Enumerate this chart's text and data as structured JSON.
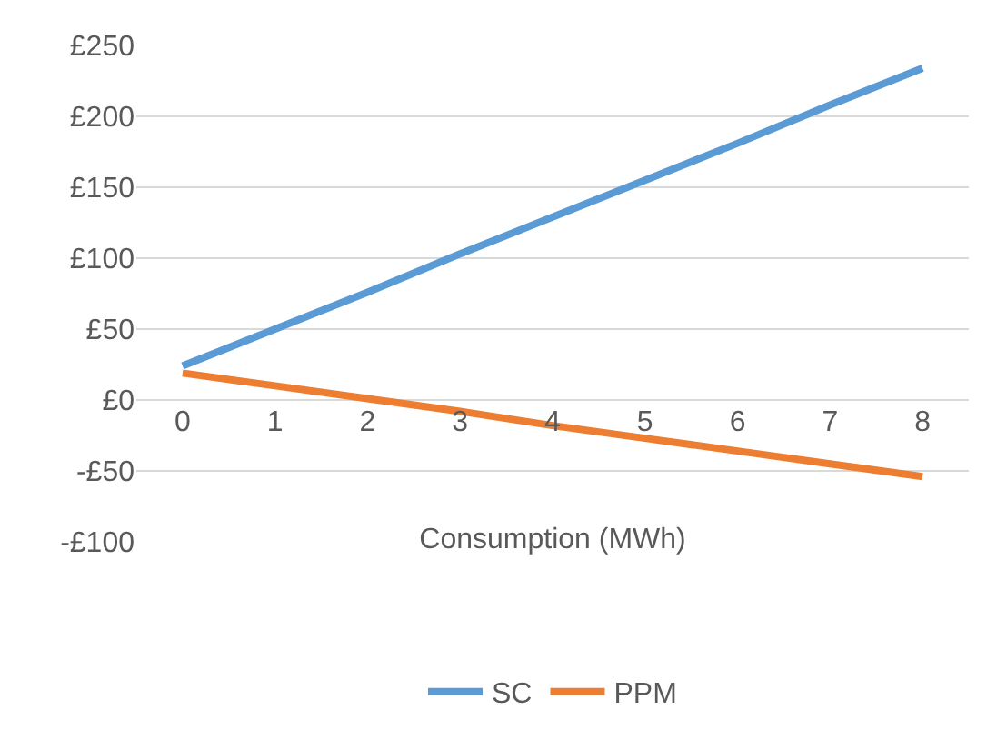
{
  "chart_data": {
    "type": "line",
    "xlabel": "Consumption (MWh)",
    "categories": [
      "0",
      "1",
      "2",
      "3",
      "4",
      "5",
      "6",
      "7",
      "8"
    ],
    "series": [
      {
        "name": "SC",
        "color": "#5b9bd5",
        "values": [
          24,
          50,
          76,
          103,
          129,
          155,
          181,
          208,
          234
        ]
      },
      {
        "name": "PPM",
        "color": "#ed7d31",
        "values": [
          19,
          10,
          1,
          -8,
          -18,
          -27,
          -36,
          -45,
          -54
        ]
      }
    ],
    "ylim": [
      -100,
      250
    ],
    "yticks": [
      {
        "value": -100,
        "label": "-£100"
      },
      {
        "value": -50,
        "label": "-£50"
      },
      {
        "value": 0,
        "label": "£0"
      },
      {
        "value": 50,
        "label": "£50"
      },
      {
        "value": 100,
        "label": "£100"
      },
      {
        "value": 150,
        "label": "£150"
      },
      {
        "value": 200,
        "label": "£200"
      },
      {
        "value": 250,
        "label": "£250"
      }
    ],
    "grid": "y",
    "legend": "bottom",
    "marker": "none",
    "line_style": "solid"
  }
}
